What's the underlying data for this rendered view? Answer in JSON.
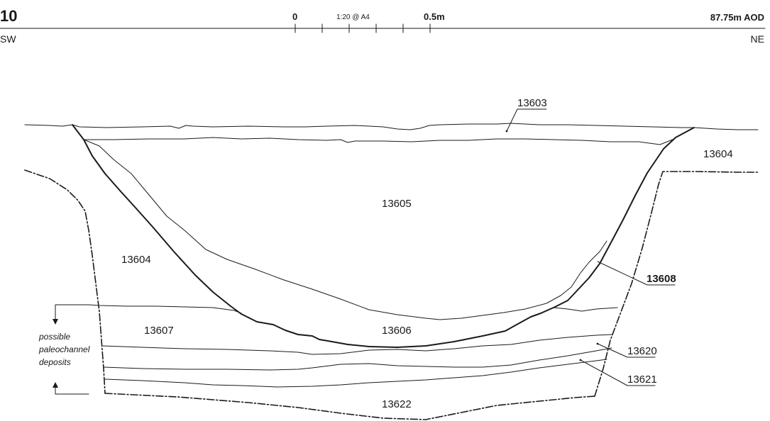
{
  "header": {
    "section_number": "10",
    "scale_start": "0",
    "scale_note": "1:20 @ A4",
    "scale_end": "0.5m",
    "datum": "87.75m AOD",
    "left_orientation": "SW",
    "right_orientation": "NE"
  },
  "contexts": {
    "c13603": "13603",
    "c13604_right": "13604",
    "c13604_left": "13604",
    "c13605": "13605",
    "c13606": "13606",
    "c13607": "13607",
    "c13608": "13608",
    "c13620": "13620",
    "c13621": "13621",
    "c13622": "13622"
  },
  "annotation": {
    "line1": "possible",
    "line2": "paleochannel",
    "line3": "deposits"
  }
}
